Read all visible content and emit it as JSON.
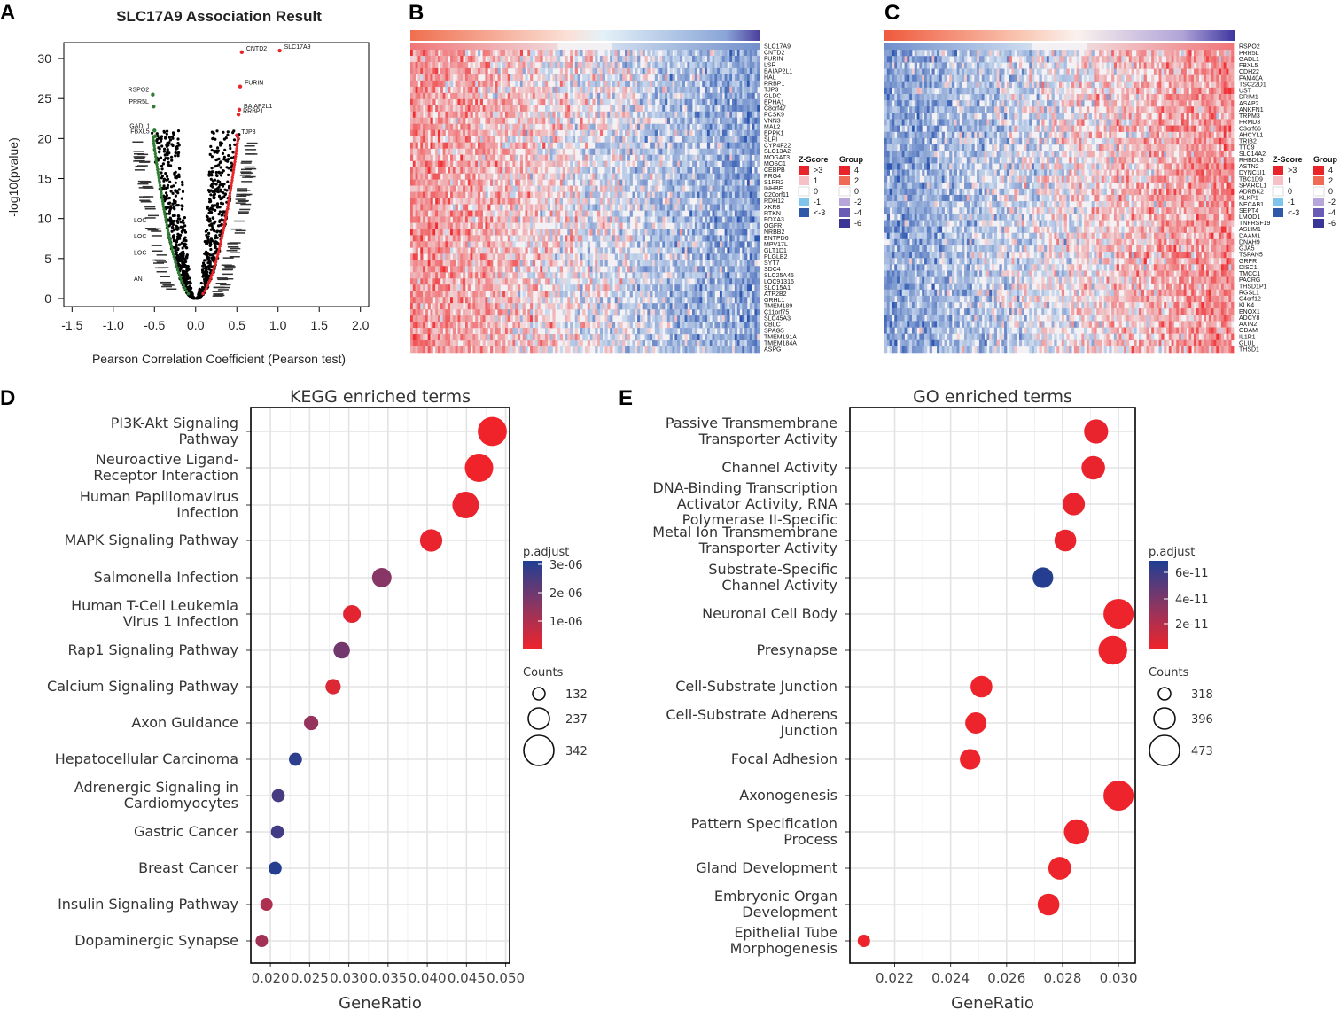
{
  "panel_labels": [
    "A",
    "B",
    "C",
    "D",
    "E"
  ],
  "chart_data": [
    {
      "id": "A",
      "type": "scatter",
      "title": "SLC17A9 Association Result",
      "xlabel": "Pearson Correlation Coefficient (Pearson test)",
      "ylabel": "-log10(pvalue)",
      "xlim": [
        -1.6,
        2.1
      ],
      "ylim": [
        -1,
        32
      ],
      "xticks": [
        -1.5,
        -1.0,
        -0.5,
        0.0,
        0.5,
        1.0,
        1.5,
        2.0
      ],
      "xtick_labels": [
        "-1.5",
        "-1.0",
        "-0.5",
        "0.0",
        "0.5",
        "1.0",
        "1.5",
        "2.0"
      ],
      "yticks": [
        0,
        5,
        10,
        15,
        20,
        25,
        30
      ],
      "ytick_labels": [
        "0",
        "5",
        "10",
        "15",
        "20",
        "25",
        "30"
      ],
      "colors": {
        "positive": "#e8262a",
        "negative": "#2e7d32",
        "ns": "#000000"
      },
      "positive_points": [
        {
          "x": 1.02,
          "y": 31.0,
          "label": "SLC17A9"
        },
        {
          "x": 0.56,
          "y": 30.8,
          "label": "CNTD2"
        },
        {
          "x": 0.54,
          "y": 26.5,
          "label": "FURIN"
        },
        {
          "x": 0.53,
          "y": 23.6,
          "label": "BAIAP2L1"
        },
        {
          "x": 0.52,
          "y": 23.0,
          "label": "RRBP1"
        },
        {
          "x": 0.5,
          "y": 20.4,
          "label": "TJP3"
        }
      ],
      "negative_points": [
        {
          "x": -0.52,
          "y": 25.5,
          "label": "RSPO2"
        },
        {
          "x": -0.51,
          "y": 24.0,
          "label": "PRR5L"
        },
        {
          "x": -0.5,
          "y": 21.0,
          "label": "GADL1"
        },
        {
          "x": -0.49,
          "y": 20.3,
          "label": "FBXL5"
        }
      ],
      "annotation_labels": [
        "LOC",
        "LOC",
        "LOC",
        "AN"
      ]
    },
    {
      "id": "B",
      "type": "heatmap",
      "rows": [
        "SLC17A9",
        "CNTD2",
        "FURIN",
        "LSR",
        "BAIAP2L1",
        "HAL",
        "RRBP1",
        "TJP3",
        "GLDC",
        "EPHA1",
        "C8orf47",
        "PCSK9",
        "VNN3",
        "MAL2",
        "EPPK1",
        "SLPI",
        "CYP4F22",
        "SLC13A2",
        "MOGAT3",
        "MOSC1",
        "CEBPB",
        "PRG4",
        "S1PR2",
        "INHBE",
        "C20orf11",
        "RDH12",
        "XKR8",
        "RTKN",
        "FOXA3",
        "OGFR",
        "NRBB2",
        "ENTPD6",
        "MPV17L",
        "GLT1D1",
        "PLGLB2",
        "SYT7",
        "SDC4",
        "SLC25A45",
        "LOC91316",
        "SLC15A1",
        "ATP2B2",
        "GRHL1",
        "TMEM189",
        "C11orf75",
        "SLC45A3",
        "CBLC",
        "SPAG5",
        "TMEM191A",
        "TMEM184A",
        "ASPG"
      ],
      "trend": "red-to-blue",
      "legend": {
        "zscore_title": "Z-Score",
        "zscore_labels": [
          ">3",
          "1",
          "0",
          "-1",
          "<-3"
        ],
        "group_title": "Group",
        "group_labels": [
          "4",
          "2",
          "0",
          "-2",
          "-4",
          "-6"
        ]
      }
    },
    {
      "id": "C",
      "type": "heatmap",
      "rows": [
        "RSPO2",
        "PRR5L",
        "GADL1",
        "FBXL5",
        "CDH22",
        "FAM40A",
        "TSC22D1",
        "UST",
        "DRIM1",
        "ASAP2",
        "ANKFN1",
        "TRPM3",
        "FRMD3",
        "C3orf66",
        "AHCYL1",
        "TRIB2",
        "TTC9",
        "SLC14A2",
        "RHBDL3",
        "ASTN2",
        "DYNC1I1",
        "TBC1D9",
        "SPARCL1",
        "ADRBK2",
        "KLKP1",
        "NECAB1",
        "SEPT4",
        "LMOD1",
        "TNFRSF19",
        "ASLIM1",
        "DAAM1",
        "DNAH9",
        "GJA5",
        "TSPAN5",
        "GRPR",
        "DISC1",
        "TMCC1",
        "PACRG",
        "THSD1P1",
        "RGSL1",
        "C4orf12",
        "KLK4",
        "ENOX1",
        "ADCY8",
        "AXIN2",
        "ODAM",
        "IL1R1",
        "GLUL",
        "THSD1"
      ],
      "trend": "blue-to-red",
      "legend": {
        "zscore_title": "Z-Score",
        "zscore_labels": [
          ">3",
          "1",
          "0",
          "-1",
          "<-3"
        ],
        "group_title": "Group",
        "group_labels": [
          "4",
          "2",
          "0",
          "-2",
          "-4",
          "-6"
        ]
      }
    },
    {
      "id": "D",
      "type": "scatter",
      "title": "KEGG enriched terms",
      "xlabel": "GeneRatio",
      "xlim": [
        0.0175,
        0.0505
      ],
      "xticks": [
        0.02,
        0.025,
        0.03,
        0.035,
        0.04,
        0.045,
        0.05
      ],
      "xtick_labels": [
        "0.020",
        "0.025",
        "0.030",
        "0.035",
        "0.040",
        "0.045",
        "0.050"
      ],
      "terms": [
        {
          "label": [
            "PI3K-Akt Signaling",
            "Pathway"
          ],
          "x": 0.0483,
          "padj": 0.0
        },
        {
          "label": [
            "Neuroactive Ligand-",
            "Receptor Interaction"
          ],
          "x": 0.0466,
          "padj": 0.0
        },
        {
          "label": [
            "Human Papillomavirus",
            "Infection"
          ],
          "x": 0.0449,
          "padj": 1e-07
        },
        {
          "label": [
            "MAPK Signaling Pathway"
          ],
          "x": 0.0405,
          "padj": 1e-07
        },
        {
          "label": [
            "Salmonella Infection"
          ],
          "x": 0.0342,
          "padj": 1.6e-06
        },
        {
          "label": [
            "Human T-Cell Leukemia",
            "Virus 1 Infection"
          ],
          "x": 0.0304,
          "padj": 2e-07
        },
        {
          "label": [
            "Rap1 Signaling Pathway"
          ],
          "x": 0.0291,
          "padj": 1.9e-06
        },
        {
          "label": [
            "Calcium Signaling Pathway"
          ],
          "x": 0.028,
          "padj": 3e-07
        },
        {
          "label": [
            "Axon Guidance"
          ],
          "x": 0.0252,
          "padj": 1.4e-06
        },
        {
          "label": [
            "Hepatocellular Carcinoma"
          ],
          "x": 0.0232,
          "padj": 2.9e-06
        },
        {
          "label": [
            "Adrenergic Signaling in",
            "Cardiomyocytes"
          ],
          "x": 0.021,
          "padj": 2.5e-06
        },
        {
          "label": [
            "Gastric Cancer"
          ],
          "x": 0.0209,
          "padj": 2.6e-06
        },
        {
          "label": [
            "Breast Cancer"
          ],
          "x": 0.0206,
          "padj": 3e-06
        },
        {
          "label": [
            "Insulin Signaling Pathway"
          ],
          "x": 0.0195,
          "padj": 1e-06
        },
        {
          "label": [
            "Dopaminergic Synapse"
          ],
          "x": 0.0189,
          "padj": 1.2e-06
        }
      ],
      "sizes": [
        330,
        320,
        300,
        250,
        215,
        195,
        180,
        165,
        155,
        140,
        140,
        140,
        140,
        132,
        132
      ],
      "color_scale": {
        "title": "p.adjust",
        "ticks": [
          "3e-06",
          "2e-06",
          "1e-06"
        ],
        "min": 0,
        "max": 3.1e-06
      },
      "size_legend": {
        "title": "Counts",
        "values": [
          132,
          237,
          342
        ],
        "labels": [
          "132",
          "237",
          "342"
        ]
      }
    },
    {
      "id": "E",
      "type": "scatter",
      "title": "GO enriched terms",
      "xlabel": "GeneRatio",
      "xlim": [
        0.0204,
        0.0306
      ],
      "xticks": [
        0.022,
        0.024,
        0.026,
        0.028,
        0.03
      ],
      "xtick_labels": [
        "0.022",
        "0.024",
        "0.026",
        "0.028",
        "0.030"
      ],
      "terms": [
        {
          "label": [
            "Passive Transmembrane",
            "Transporter Activity"
          ],
          "x": 0.0292,
          "padj": 2e-12
        },
        {
          "label": [
            "Channel Activity"
          ],
          "x": 0.0291,
          "padj": 2e-12
        },
        {
          "label": [
            "DNA-Binding Transcription",
            "Activator Activity, RNA",
            "Polymerase II-Specific"
          ],
          "x": 0.0284,
          "padj": 2e-12
        },
        {
          "label": [
            "Metal Ion Transmembrane",
            "Transporter Activity"
          ],
          "x": 0.0281,
          "padj": 2e-12
        },
        {
          "label": [
            "Substrate-Specific",
            "Channel Activity"
          ],
          "x": 0.0273,
          "padj": 6.8e-11
        },
        {
          "label": [
            "Neuronal Cell Body"
          ],
          "x": 0.03,
          "padj": 1e-12
        },
        {
          "label": [
            "Presynapse"
          ],
          "x": 0.0298,
          "padj": 1e-12
        },
        {
          "label": [
            "Cell-Substrate Junction"
          ],
          "x": 0.0251,
          "padj": 1e-12
        },
        {
          "label": [
            "Cell-Substrate Adherens",
            "Junction"
          ],
          "x": 0.0249,
          "padj": 1e-12
        },
        {
          "label": [
            "Focal Adhesion"
          ],
          "x": 0.0247,
          "padj": 1e-12
        },
        {
          "label": [
            "Axonogenesis"
          ],
          "x": 0.03,
          "padj": 1e-12
        },
        {
          "label": [
            "Pattern Specification",
            "Process"
          ],
          "x": 0.0285,
          "padj": 1e-12
        },
        {
          "label": [
            "Gland Development"
          ],
          "x": 0.0279,
          "padj": 1e-12
        },
        {
          "label": [
            "Embryonic Organ",
            "Development"
          ],
          "x": 0.0275,
          "padj": 1e-12
        },
        {
          "label": [
            "Epithelial Tube",
            "Morphogenesis"
          ],
          "x": 0.0209,
          "padj": 1e-12
        }
      ],
      "sizes": [
        420,
        415,
        405,
        400,
        390,
        473,
        460,
        400,
        395,
        390,
        473,
        430,
        410,
        400,
        318
      ],
      "color_scale": {
        "title": "p.adjust",
        "ticks": [
          "6e-11",
          "4e-11",
          "2e-11"
        ],
        "min": 0,
        "max": 7e-11
      },
      "size_legend": {
        "title": "Counts",
        "values": [
          318,
          396,
          473
        ],
        "labels": [
          "318",
          "396",
          "473"
        ]
      }
    }
  ]
}
